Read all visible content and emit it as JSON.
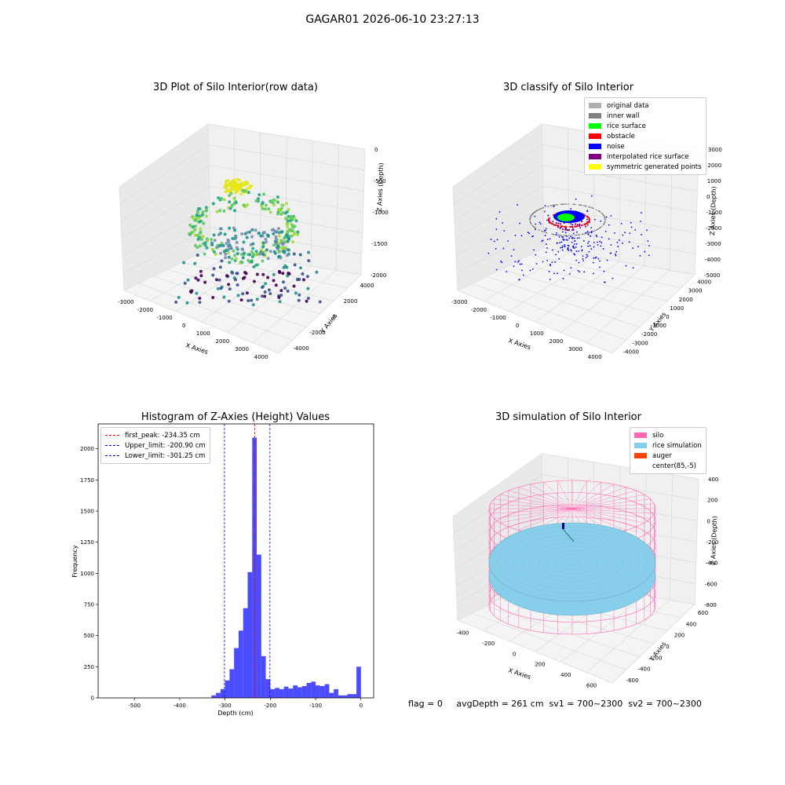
{
  "figure": {
    "suptitle": "GAGAR01 2026-06-10 23:27:13",
    "footer": "flag = 0     avgDepth = 261 cm  sv1 = 700~2300  sv2 = 700~2300"
  },
  "panels": {
    "p1": {
      "title": "3D Plot of Silo Interior(row data)",
      "xlabel": "X Axies",
      "ylabel": "Y Axies",
      "zlabel": "Z Axies (Depth)",
      "xticks": [
        "-3000",
        "-2000",
        "-1000",
        "0",
        "1000",
        "2000",
        "3000",
        "4000"
      ],
      "yticks": [
        "-4000",
        "-2000",
        "0",
        "2000",
        "4000"
      ],
      "zticks": [
        "-2000",
        "-1500",
        "-1000",
        "-500",
        "0"
      ]
    },
    "p2": {
      "title": "3D classify of Silo Interior",
      "xlabel": "X Axies",
      "ylabel": "Y Axies",
      "zlabel": "Z Axies (Depth)",
      "xticks": [
        "-3000",
        "-2000",
        "-1000",
        "0",
        "1000",
        "2000",
        "3000",
        "4000"
      ],
      "yticks": [
        "-4000",
        "-3000",
        "-2000",
        "-1000",
        "0",
        "1000",
        "2000",
        "3000",
        "4000"
      ],
      "zticks": [
        "-5000",
        "-4000",
        "-3000",
        "-2000",
        "-1000",
        "0",
        "1000",
        "2000",
        "3000"
      ],
      "legend": [
        {
          "label": "original data",
          "color": "#b0b0b0"
        },
        {
          "label": "inner wall",
          "color": "#808080"
        },
        {
          "label": "rice surface",
          "color": "#00ff00"
        },
        {
          "label": "obstacle",
          "color": "#ff0000"
        },
        {
          "label": "noise",
          "color": "#0000ff"
        },
        {
          "label": "interpolated rice surface",
          "color": "#800080"
        },
        {
          "label": "symmetric generated points",
          "color": "#ffff00"
        }
      ]
    },
    "p4": {
      "title": "3D simulation of Silo Interior",
      "xlabel": "X Axies",
      "ylabel": "Y Axies",
      "zlabel": "Z Axies (Depth)",
      "xticks": [
        "-400",
        "-200",
        "0",
        "200",
        "400",
        "600"
      ],
      "yticks": [
        "-600",
        "-400",
        "-200",
        "0",
        "200",
        "400",
        "600"
      ],
      "zticks": [
        "-800",
        "-600",
        "-400",
        "-200",
        "0",
        "200",
        "400"
      ],
      "legend": [
        {
          "label": "silo",
          "color": "#ff69b4"
        },
        {
          "label": "rice simulation",
          "color": "#87ceeb"
        },
        {
          "label": "auger",
          "color": "#ff4500"
        },
        {
          "label": "center(85,-5)",
          "color": "#ffffff"
        }
      ]
    }
  },
  "chart_data": [
    {
      "type": "scatter",
      "title": "3D Plot of Silo Interior(row data)",
      "xlabel": "X Axies",
      "ylabel": "Y Axies",
      "zlabel": "Z Axies (Depth)",
      "xlim": [
        -3500,
        4200
      ],
      "ylim": [
        -4500,
        4500
      ],
      "zlim": [
        -2300,
        100
      ],
      "colormap": "viridis"
    },
    {
      "type": "scatter",
      "title": "3D classify of Silo Interior",
      "xlabel": "X Axies",
      "ylabel": "Y Axies",
      "zlabel": "Z Axies (Depth)",
      "xlim": [
        -3500,
        4200
      ],
      "ylim": [
        -4500,
        4500
      ],
      "zlim": [
        -5000,
        3000
      ],
      "series": [
        {
          "name": "original data",
          "color": "#b0b0b0"
        },
        {
          "name": "inner wall",
          "color": "#808080"
        },
        {
          "name": "rice surface",
          "color": "#00ff00"
        },
        {
          "name": "obstacle",
          "color": "#ff0000"
        },
        {
          "name": "noise",
          "color": "#0000ff"
        },
        {
          "name": "interpolated rice surface",
          "color": "#800080"
        },
        {
          "name": "symmetric generated points",
          "color": "#ffff00"
        }
      ]
    },
    {
      "type": "bar",
      "title": "Histogram of Z-Axies (Height) Values",
      "xlabel": "Depth (cm)",
      "ylabel": "Frequency",
      "xlim": [
        -580,
        28
      ],
      "ylim": [
        0,
        2200
      ],
      "xticks": [
        -500,
        -400,
        -300,
        -200,
        -100,
        0
      ],
      "yticks": [
        0,
        250,
        500,
        750,
        1000,
        1250,
        1500,
        1750,
        2000
      ],
      "bar_color": "#0000ff",
      "bins": [
        {
          "x0": -330,
          "x1": -320,
          "count": 20
        },
        {
          "x0": -320,
          "x1": -310,
          "count": 40
        },
        {
          "x0": -310,
          "x1": -300,
          "count": 70
        },
        {
          "x0": -300,
          "x1": -290,
          "count": 140
        },
        {
          "x0": -290,
          "x1": -280,
          "count": 230
        },
        {
          "x0": -280,
          "x1": -270,
          "count": 400
        },
        {
          "x0": -270,
          "x1": -260,
          "count": 540
        },
        {
          "x0": -260,
          "x1": -250,
          "count": 720
        },
        {
          "x0": -250,
          "x1": -240,
          "count": 1010
        },
        {
          "x0": -240,
          "x1": -230,
          "count": 2090
        },
        {
          "x0": -230,
          "x1": -220,
          "count": 1150
        },
        {
          "x0": -220,
          "x1": -210,
          "count": 335
        },
        {
          "x0": -210,
          "x1": -200,
          "count": 150
        },
        {
          "x0": -200,
          "x1": -190,
          "count": 70
        },
        {
          "x0": -190,
          "x1": -180,
          "count": 80
        },
        {
          "x0": -180,
          "x1": -170,
          "count": 70
        },
        {
          "x0": -170,
          "x1": -160,
          "count": 90
        },
        {
          "x0": -160,
          "x1": -150,
          "count": 75
        },
        {
          "x0": -150,
          "x1": -140,
          "count": 100
        },
        {
          "x0": -140,
          "x1": -130,
          "count": 85
        },
        {
          "x0": -130,
          "x1": -120,
          "count": 95
        },
        {
          "x0": -120,
          "x1": -110,
          "count": 120
        },
        {
          "x0": -110,
          "x1": -100,
          "count": 130
        },
        {
          "x0": -100,
          "x1": -90,
          "count": 100
        },
        {
          "x0": -90,
          "x1": -80,
          "count": 95
        },
        {
          "x0": -80,
          "x1": -70,
          "count": 110
        },
        {
          "x0": -70,
          "x1": -60,
          "count": 40
        },
        {
          "x0": -60,
          "x1": -50,
          "count": 70
        },
        {
          "x0": -50,
          "x1": -40,
          "count": 20
        },
        {
          "x0": -40,
          "x1": -30,
          "count": 20
        },
        {
          "x0": -30,
          "x1": -20,
          "count": 30
        },
        {
          "x0": -20,
          "x1": -10,
          "count": 30
        },
        {
          "x0": -10,
          "x1": 0,
          "count": 250
        }
      ],
      "vlines": [
        {
          "label": "first_peak: -234.35 cm",
          "value": -234.35,
          "color": "#ff0000"
        },
        {
          "label": "Upper_limit: -200.90 cm",
          "value": -200.9,
          "color": "#0000ff"
        },
        {
          "label": "Lower_limit: -301.25 cm",
          "value": -301.25,
          "color": "#0000ff"
        }
      ],
      "legend_position": "upper left"
    },
    {
      "type": "area",
      "title": "3D simulation of Silo Interior",
      "xlabel": "X Axies",
      "ylabel": "Y Axies",
      "zlabel": "Z Axies (Depth)",
      "xlim": [
        -550,
        750
      ],
      "ylim": [
        -700,
        700
      ],
      "zlim": [
        -900,
        450
      ],
      "series": [
        {
          "name": "silo",
          "color": "#ff69b4"
        },
        {
          "name": "rice simulation",
          "color": "#87ceeb"
        },
        {
          "name": "auger",
          "color": "#ff4500"
        },
        {
          "name": "center(85,-5)",
          "color": "#ffffff"
        }
      ]
    }
  ]
}
